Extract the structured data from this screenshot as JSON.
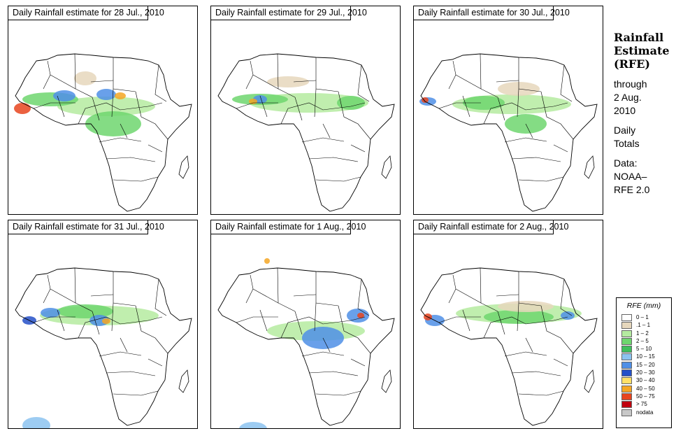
{
  "panels": [
    {
      "title": "Daily Rainfall estimate for  28 Jul., 2010",
      "date": "28 Jul., 2010"
    },
    {
      "title": "Daily Rainfall estimate for  29 Jul., 2010",
      "date": "29 Jul., 2010"
    },
    {
      "title": "Daily Rainfall estimate for  30 Jul., 2010",
      "date": "30 Jul., 2010"
    },
    {
      "title": "Daily Rainfall estimate for  31 Jul., 2010",
      "date": "31 Jul., 2010"
    },
    {
      "title": "Daily Rainfall estimate for  1 Aug., 2010",
      "date": "1 Aug., 2010"
    },
    {
      "title": "Daily Rainfall estimate for  2 Aug., 2010",
      "date": "2 Aug., 2010"
    }
  ],
  "sidebar": {
    "title_line1": "Rainfall",
    "title_line2": "Estimate",
    "title_line3": "(RFE)",
    "through": "through",
    "end_date_line1": "2 Aug.",
    "end_date_line2": "2010",
    "totals_line1": "Daily",
    "totals_line2": "Totals",
    "data_label": "Data:",
    "data_source_line1": "NOAA–",
    "data_source_line2": "RFE 2.0"
  },
  "legend": {
    "title": "RFE (mm)",
    "items": [
      {
        "label": "0 – 1",
        "color": "#ffffff"
      },
      {
        "label": ".1 – 1",
        "color": "#e6d7bc"
      },
      {
        "label": "1 – 2",
        "color": "#b5eba0"
      },
      {
        "label": "2 – 5",
        "color": "#6ed66e"
      },
      {
        "label": "5 – 10",
        "color": "#3fbf5c"
      },
      {
        "label": "10 – 15",
        "color": "#8cc3f0"
      },
      {
        "label": "15 – 20",
        "color": "#4f8fe6"
      },
      {
        "label": "20 – 30",
        "color": "#2450c8"
      },
      {
        "label": "30 – 40",
        "color": "#ffe066"
      },
      {
        "label": "40 – 50",
        "color": "#f5a623"
      },
      {
        "label": "50 – 75",
        "color": "#e8451e"
      },
      {
        "label": "> 75",
        "color": "#c0000e"
      },
      {
        "label": "nodata",
        "color": "#c8c8c8"
      }
    ]
  }
}
